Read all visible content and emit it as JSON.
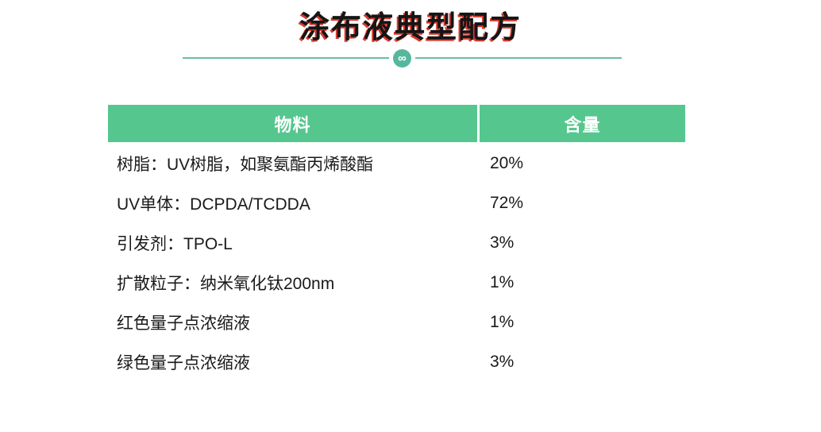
{
  "title": {
    "text": "涂布液典型配方",
    "text_color": "#151515",
    "shadow_color": "#d93a2e"
  },
  "divider": {
    "icon": "infinity-icon",
    "icon_glyph": "∞",
    "line_color": "#69bda7",
    "badge_color": "#58b69e"
  },
  "table": {
    "headers": [
      {
        "label": "物料"
      },
      {
        "label": "含量"
      }
    ],
    "rows": [
      {
        "material": "树脂：UV树脂，如聚氨酯丙烯酸酯",
        "amount": "20%"
      },
      {
        "material": "UV单体：DCPDA/TCDDA",
        "amount": "72%"
      },
      {
        "material": "引发剂：TPO-L",
        "amount": "3%"
      },
      {
        "material": "扩散粒子：纳米氧化钛200nm",
        "amount": "1%"
      },
      {
        "material": "红色量子点浓缩液",
        "amount": "1%"
      },
      {
        "material": "绿色量子点浓缩液",
        "amount": "3%"
      }
    ],
    "colors": {
      "header_bg": "#55c78e",
      "header_text": "#ffffff",
      "row_odd_bg": "#d6ede1",
      "row_even_bg": "#eaf6ef",
      "body_text": "#1a1a1a"
    }
  }
}
